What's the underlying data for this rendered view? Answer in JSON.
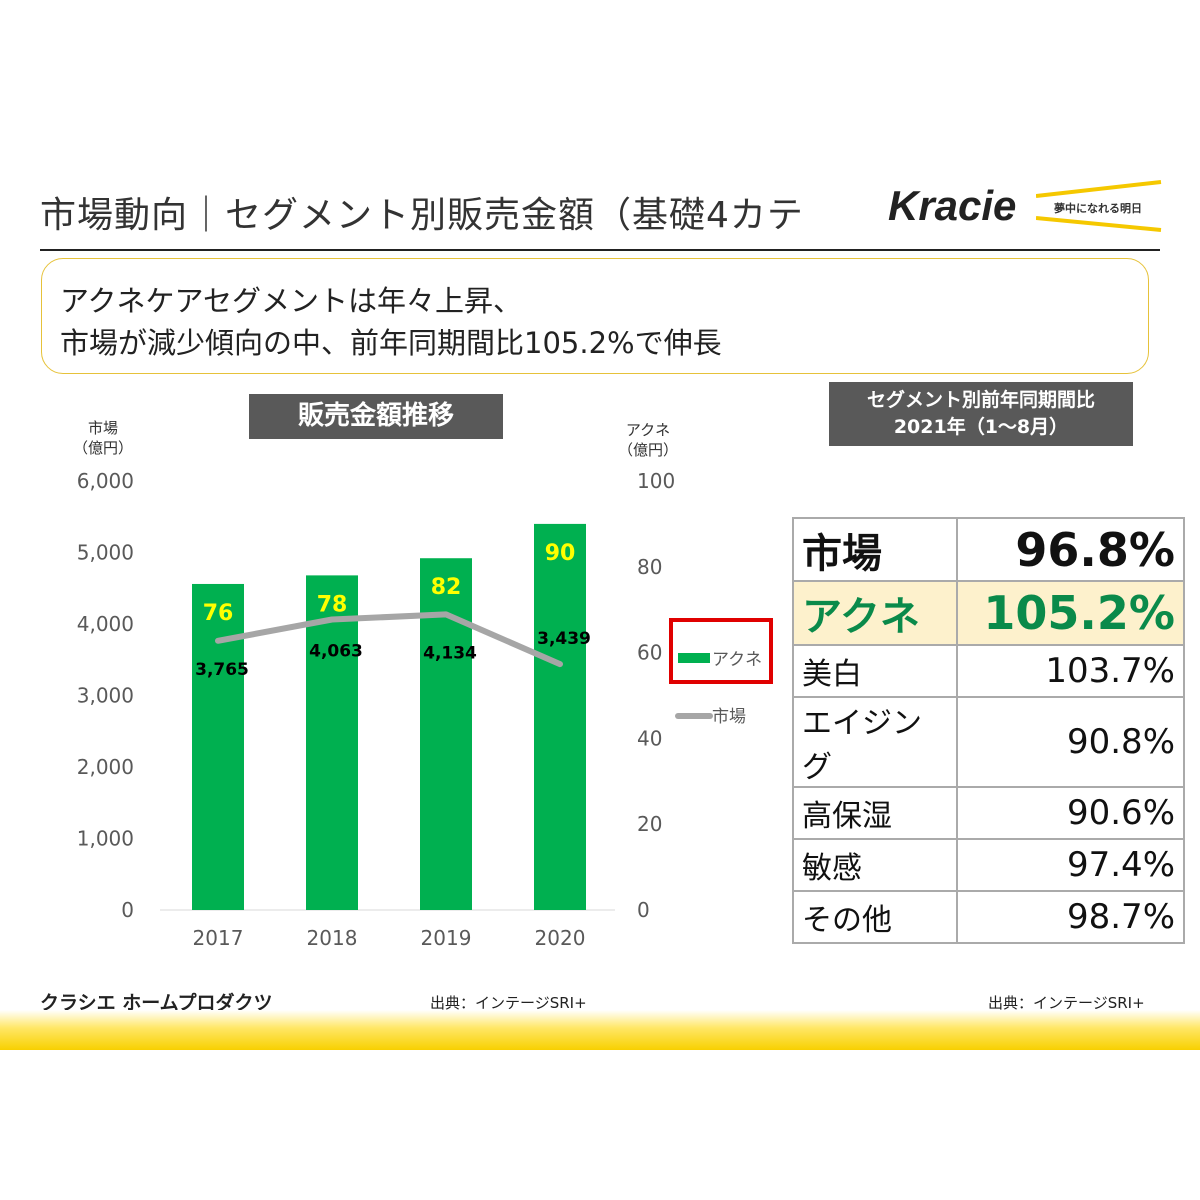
{
  "header": {
    "title": "市場動向｜セグメント別販売金額（基礎4カテ",
    "logo": "Kracie",
    "tagline": "夢中になれる明日"
  },
  "callout": {
    "line1": "アクネケアセグメントは年々上昇、",
    "line2": "市場が減少傾向の中、前年同期間比105.2%で伸長"
  },
  "chart_data": {
    "type": "bar",
    "title": "販売金額推移",
    "categories": [
      "2017",
      "2018",
      "2019",
      "2020"
    ],
    "series": [
      {
        "name": "アクネ",
        "type": "bar",
        "axis": "right",
        "values": [
          76,
          78,
          82,
          90
        ],
        "color": "#00b050",
        "label_color": "#ffff00"
      },
      {
        "name": "市場",
        "type": "line",
        "axis": "left",
        "values": [
          3765,
          4063,
          4134,
          3439
        ],
        "color": "#a6a6a6",
        "label_color": "#000000"
      }
    ],
    "left_axis": {
      "label": "市場\n（億円）",
      "label_line1": "市場",
      "label_line2": "（億円）",
      "ylim": [
        0,
        6000
      ],
      "ticks": [
        "0",
        "1,000",
        "2,000",
        "3,000",
        "4,000",
        "5,000",
        "6,000"
      ]
    },
    "right_axis": {
      "label_line1": "アクネ",
      "label_line2": "（億円）",
      "ylim": [
        0,
        100
      ],
      "ticks": [
        "0",
        "20",
        "40",
        "60",
        "80",
        "100"
      ]
    },
    "grid": false,
    "legend": {
      "placement": "right",
      "highlighted": "アクネ",
      "highlight_color": "#e00000"
    }
  },
  "yoy_table": {
    "title_line1": "セグメント別前年同期間比",
    "title_line2": "2021年（1～8月）",
    "rows": [
      {
        "segment": "市場",
        "value": "96.8%"
      },
      {
        "segment": "アクネ",
        "value": "105.2%"
      },
      {
        "segment": "美白",
        "value": "103.7%"
      },
      {
        "segment": "エイジング",
        "value": "90.8%"
      },
      {
        "segment": "高保湿",
        "value": "90.6%"
      },
      {
        "segment": "敏感",
        "value": "97.4%"
      },
      {
        "segment": "その他",
        "value": "98.7%"
      }
    ],
    "highlight_bg": "#fdf1cc",
    "highlight_fg": "#0a8a4a"
  },
  "footer": {
    "company": "クラシエ ホームプロダクツ",
    "source_left": "出典：インテージSRI+",
    "source_right": "出典：インテージSRI+"
  }
}
